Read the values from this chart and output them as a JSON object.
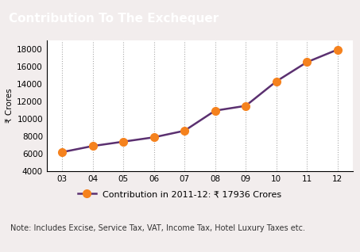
{
  "title": "Contribution To The Exchequer",
  "title_bg_color": "#6b3d7d",
  "title_text_color": "#ffffff",
  "years": [
    "03",
    "04",
    "05",
    "06",
    "07",
    "08",
    "09",
    "10",
    "11",
    "12"
  ],
  "values": [
    6200,
    6900,
    7400,
    7900,
    8650,
    10950,
    11500,
    14300,
    16500,
    17936
  ],
  "line_color": "#5b3070",
  "marker_color": "#f5821e",
  "marker_size": 7,
  "line_width": 1.8,
  "ylim": [
    4000,
    19000
  ],
  "yticks": [
    4000,
    6000,
    8000,
    10000,
    12000,
    14000,
    16000,
    18000
  ],
  "ylabel": "₹ Crores",
  "legend_label": "Contribution in 2011-12: ₹ 17936 Crores",
  "note": "Note: Includes Excise, Service Tax, VAT, Income Tax, Hotel Luxury Taxes etc.",
  "bg_color": "#f2eded",
  "plot_bg_color": "#ffffff",
  "grid_color": "#aaaaaa",
  "grid_style": ":",
  "grid_linewidth": 0.8,
  "title_fontsize": 11,
  "tick_fontsize": 7.5,
  "ylabel_fontsize": 7.5,
  "legend_fontsize": 8,
  "note_fontsize": 7
}
